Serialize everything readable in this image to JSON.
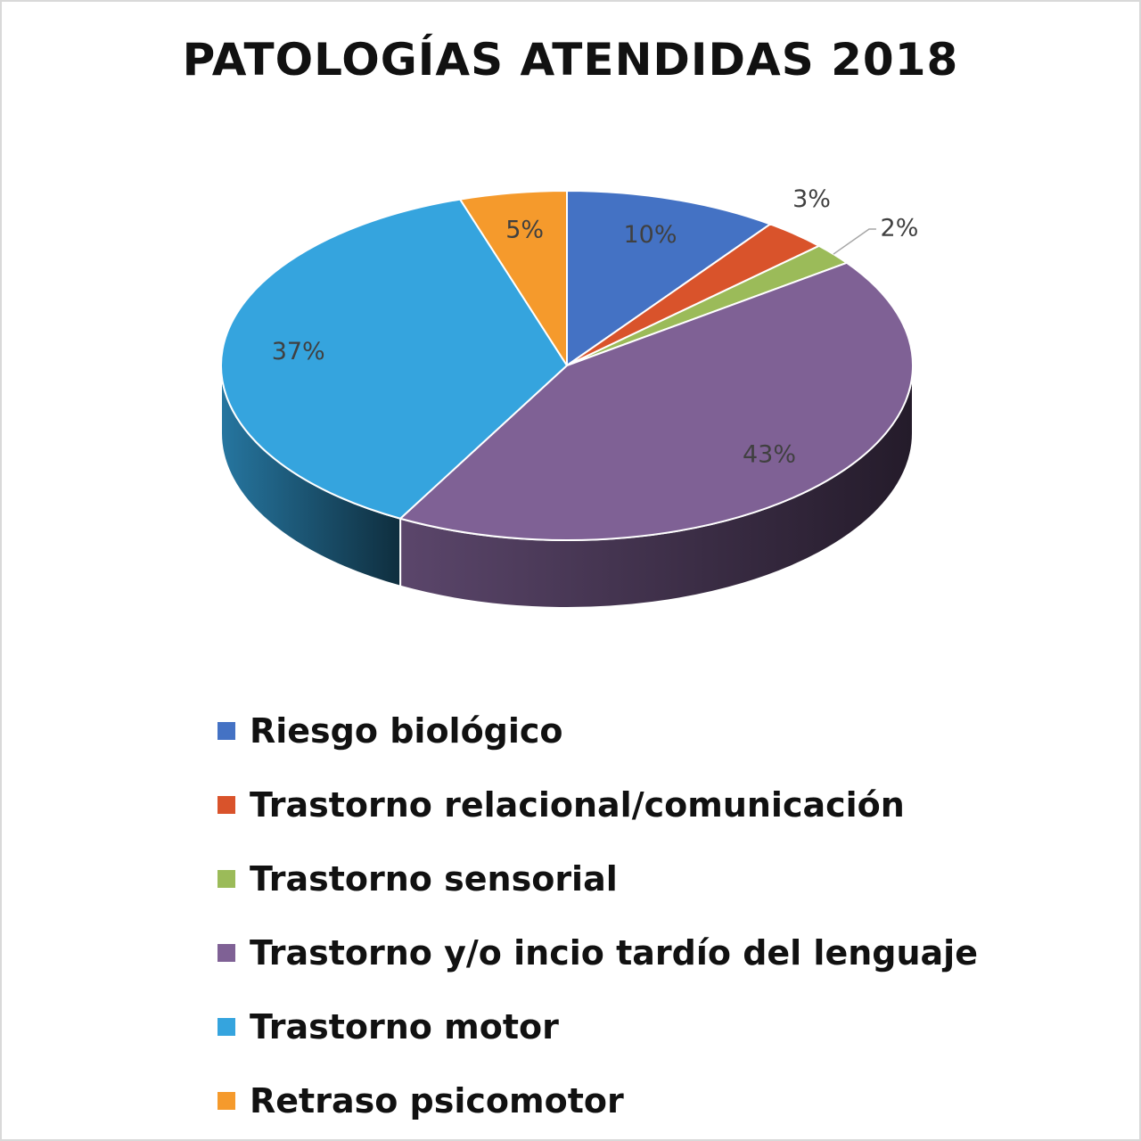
{
  "chart_data": {
    "type": "pie",
    "title": "PATOLOGÍAS ATENDIDAS 2018",
    "labels": [
      "Riesgo biológico",
      "Trastorno relacional/comunicación",
      "Trastorno sensorial",
      "Trastorno y/o incio tardío del lenguaje",
      "Trastorno motor",
      "Retraso psicomotor"
    ],
    "values": [
      10,
      3,
      2,
      43,
      37,
      5
    ],
    "data_labels": [
      "10%",
      "3%",
      "2%",
      "43%",
      "37%",
      "5%"
    ],
    "colors": [
      "#4472c4",
      "#d9532b",
      "#9bbb59",
      "#7f6195",
      "#35a4de",
      "#f59a2c"
    ],
    "legend_position": "bottom",
    "style": "3d"
  }
}
